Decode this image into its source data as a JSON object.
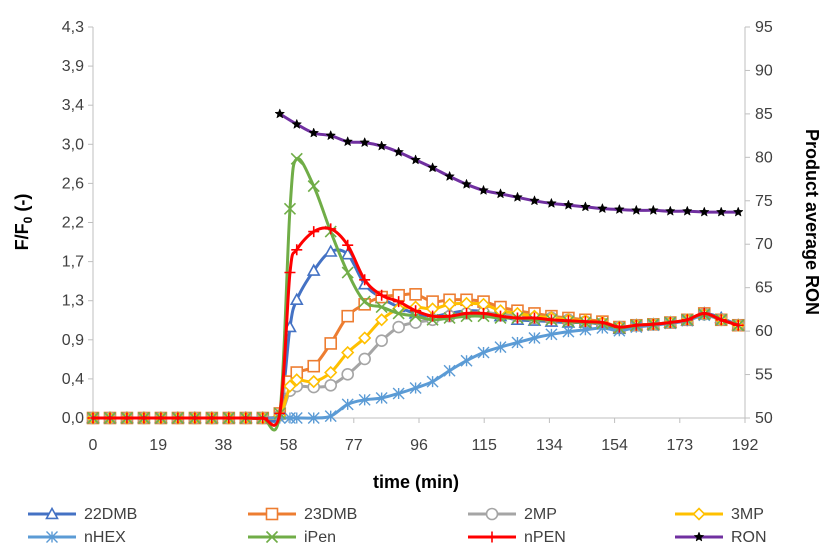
{
  "chart_data": {
    "type": "line",
    "xlabel": "time (min)",
    "ylabel_left": "F/F",
    "ylabel_left_sub": "0",
    "ylabel_left_suffix": " (-)",
    "ylabel_right": "Product average RON",
    "xlim": [
      0,
      192
    ],
    "ylim_left": [
      0,
      4.3
    ],
    "ylim_right": [
      50,
      95
    ],
    "x_ticks": [
      "0",
      "19",
      "38",
      "58",
      "77",
      "96",
      "115",
      "134",
      "154",
      "173",
      "192"
    ],
    "y_left_ticks": [
      "0,0",
      "0,4",
      "0,9",
      "1,3",
      "1,7",
      "2,2",
      "2,6",
      "3,0",
      "3,4",
      "3,9",
      "4,3"
    ],
    "y_right_ticks": [
      "50",
      "55",
      "60",
      "65",
      "70",
      "75",
      "80",
      "85",
      "90",
      "95"
    ],
    "grid": false,
    "legend_position": "bottom",
    "series": [
      {
        "name": "22DMB",
        "color": "#4472C4",
        "marker": "triangle",
        "axis": "left",
        "x": [
          0,
          5,
          10,
          15,
          20,
          25,
          30,
          35,
          40,
          45,
          50,
          55,
          58,
          60,
          65,
          70,
          75,
          80,
          85,
          90,
          95,
          100,
          105,
          110,
          115,
          120,
          125,
          130,
          135,
          140,
          145,
          150,
          155,
          160,
          165,
          170,
          175,
          180,
          185,
          190
        ],
        "y": [
          0,
          0,
          0,
          0,
          0,
          0,
          0,
          0,
          0,
          0,
          0,
          0.05,
          1.0,
          1.3,
          1.62,
          1.83,
          1.8,
          1.47,
          1.32,
          1.22,
          1.15,
          1.12,
          1.15,
          1.18,
          1.17,
          1.12,
          1.08,
          1.07,
          1.06,
          1.05,
          1.05,
          1.03,
          0.98,
          1.02,
          1.03,
          1.05,
          1.07,
          1.15,
          1.1,
          1.02
        ]
      },
      {
        "name": "23DMB",
        "color": "#ED7D31",
        "marker": "square",
        "axis": "left",
        "x": [
          0,
          5,
          10,
          15,
          20,
          25,
          30,
          35,
          40,
          45,
          50,
          55,
          58,
          60,
          65,
          70,
          75,
          80,
          85,
          90,
          95,
          100,
          105,
          110,
          115,
          120,
          125,
          130,
          135,
          140,
          145,
          150,
          155,
          160,
          165,
          170,
          175,
          180,
          185,
          190
        ],
        "y": [
          0,
          0,
          0,
          0,
          0,
          0,
          0,
          0,
          0,
          0,
          0,
          0.05,
          0.4,
          0.5,
          0.57,
          0.82,
          1.12,
          1.25,
          1.33,
          1.35,
          1.36,
          1.28,
          1.3,
          1.3,
          1.28,
          1.22,
          1.18,
          1.15,
          1.12,
          1.1,
          1.08,
          1.06,
          1.0,
          1.02,
          1.03,
          1.05,
          1.08,
          1.15,
          1.08,
          1.02
        ]
      },
      {
        "name": "2MP",
        "color": "#A5A5A5",
        "marker": "circle",
        "axis": "left",
        "x": [
          0,
          5,
          10,
          15,
          20,
          25,
          30,
          35,
          40,
          45,
          50,
          55,
          58,
          60,
          65,
          70,
          75,
          80,
          85,
          90,
          95,
          100,
          105,
          110,
          115,
          120,
          125,
          130,
          135,
          140,
          145,
          150,
          155,
          160,
          165,
          170,
          175,
          180,
          185,
          190
        ],
        "y": [
          0,
          0,
          0,
          0,
          0,
          0,
          0,
          0,
          0,
          0,
          0,
          0.03,
          0.3,
          0.35,
          0.34,
          0.36,
          0.48,
          0.65,
          0.85,
          1.0,
          1.05,
          1.08,
          1.12,
          1.15,
          1.16,
          1.14,
          1.12,
          1.1,
          1.1,
          1.08,
          1.06,
          1.04,
          1.0,
          1.02,
          1.03,
          1.05,
          1.08,
          1.14,
          1.08,
          1.02
        ]
      },
      {
        "name": "3MP",
        "color": "#FFC000",
        "marker": "diamond",
        "axis": "left",
        "x": [
          0,
          5,
          10,
          15,
          20,
          25,
          30,
          35,
          40,
          45,
          50,
          55,
          58,
          60,
          65,
          70,
          75,
          80,
          85,
          90,
          95,
          100,
          105,
          110,
          115,
          120,
          125,
          130,
          135,
          140,
          145,
          150,
          155,
          160,
          165,
          170,
          175,
          180,
          185,
          190
        ],
        "y": [
          0,
          0,
          0,
          0,
          0,
          0,
          0,
          0,
          0,
          0,
          0,
          0.03,
          0.35,
          0.42,
          0.4,
          0.5,
          0.72,
          0.88,
          1.08,
          1.2,
          1.22,
          1.2,
          1.25,
          1.26,
          1.25,
          1.18,
          1.15,
          1.12,
          1.1,
          1.08,
          1.07,
          1.05,
          1.0,
          1.02,
          1.03,
          1.05,
          1.08,
          1.14,
          1.08,
          1.02
        ]
      },
      {
        "name": "nHEX",
        "color": "#5B9BD5",
        "marker": "asterisk",
        "axis": "left",
        "x": [
          0,
          5,
          10,
          15,
          20,
          25,
          30,
          35,
          40,
          45,
          50,
          55,
          58,
          60,
          65,
          70,
          75,
          80,
          85,
          90,
          95,
          100,
          105,
          110,
          115,
          120,
          125,
          130,
          135,
          140,
          145,
          150,
          155,
          160,
          165,
          170,
          175,
          180,
          185,
          190
        ],
        "y": [
          0,
          0,
          0,
          0,
          0,
          0,
          0,
          0,
          0,
          0,
          0,
          0,
          0,
          0,
          0,
          0.02,
          0.15,
          0.2,
          0.22,
          0.27,
          0.33,
          0.4,
          0.52,
          0.63,
          0.72,
          0.78,
          0.83,
          0.88,
          0.92,
          0.95,
          0.97,
          0.99,
          0.96,
          1.0,
          1.02,
          1.04,
          1.07,
          1.13,
          1.08,
          1.02
        ]
      },
      {
        "name": "iPen",
        "color": "#70AD47",
        "marker": "x",
        "axis": "left",
        "x": [
          0,
          5,
          10,
          15,
          20,
          25,
          30,
          35,
          40,
          45,
          50,
          55,
          58,
          60,
          65,
          70,
          75,
          80,
          85,
          90,
          95,
          100,
          105,
          110,
          115,
          120,
          125,
          130,
          135,
          140,
          145,
          150,
          155,
          160,
          165,
          170,
          175,
          180,
          185,
          190
        ],
        "y": [
          0,
          0,
          0,
          0,
          0,
          0,
          0,
          0,
          0,
          0,
          0,
          0.05,
          2.3,
          2.85,
          2.55,
          2.05,
          1.6,
          1.28,
          1.22,
          1.15,
          1.12,
          1.08,
          1.1,
          1.12,
          1.12,
          1.1,
          1.1,
          1.08,
          1.08,
          1.06,
          1.05,
          1.04,
          0.99,
          1.02,
          1.03,
          1.05,
          1.08,
          1.14,
          1.08,
          1.02
        ]
      },
      {
        "name": "nPEN",
        "color": "#FF0000",
        "marker": "plus",
        "axis": "left",
        "x": [
          0,
          5,
          10,
          15,
          20,
          25,
          30,
          35,
          40,
          45,
          50,
          55,
          58,
          60,
          65,
          70,
          75,
          80,
          85,
          90,
          95,
          100,
          105,
          110,
          115,
          120,
          125,
          130,
          135,
          140,
          145,
          150,
          155,
          160,
          165,
          170,
          175,
          180,
          185,
          190
        ],
        "y": [
          0,
          0,
          0,
          0,
          0,
          0,
          0,
          0,
          0,
          0,
          0,
          0.05,
          1.6,
          1.85,
          2.05,
          2.08,
          1.9,
          1.52,
          1.35,
          1.28,
          1.18,
          1.12,
          1.12,
          1.15,
          1.15,
          1.12,
          1.1,
          1.1,
          1.08,
          1.07,
          1.06,
          1.05,
          1.0,
          1.02,
          1.03,
          1.05,
          1.08,
          1.15,
          1.08,
          1.02
        ]
      },
      {
        "name": "RON",
        "color": "#7030A0",
        "marker": "star",
        "axis": "right",
        "x": [
          55,
          60,
          65,
          70,
          75,
          80,
          85,
          90,
          95,
          100,
          105,
          110,
          115,
          120,
          125,
          130,
          135,
          140,
          145,
          150,
          155,
          160,
          165,
          170,
          175,
          180,
          185,
          190
        ],
        "y": [
          85.0,
          83.8,
          82.8,
          82.5,
          81.8,
          81.7,
          81.3,
          80.6,
          79.7,
          78.8,
          77.8,
          76.9,
          76.2,
          75.8,
          75.4,
          75.0,
          74.7,
          74.5,
          74.3,
          74.1,
          74.0,
          73.9,
          73.9,
          73.8,
          73.8,
          73.7,
          73.7,
          73.7
        ]
      }
    ]
  }
}
